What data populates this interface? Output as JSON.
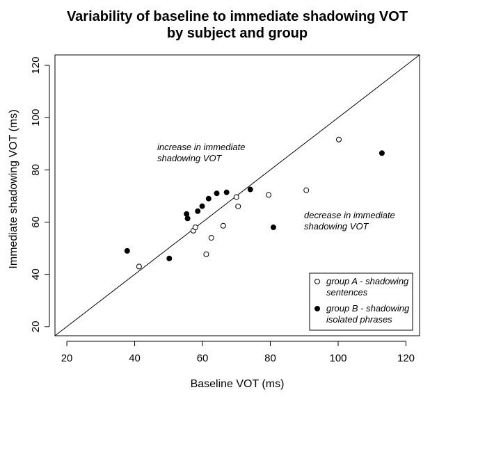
{
  "chart_data": {
    "type": "scatter",
    "title": [
      "Variability of baseline to immediate shadowing VOT",
      "by subject and group"
    ],
    "xlabel": "Baseline VOT (ms)",
    "ylabel": "Immediate shadowing VOT (ms)",
    "xlim": [
      16.5,
      124
    ],
    "ylim": [
      16.5,
      124
    ],
    "xticks": [
      20,
      40,
      60,
      80,
      100,
      120
    ],
    "yticks": [
      20,
      40,
      60,
      80,
      100,
      120
    ],
    "grid": false,
    "reference_line": "y = x",
    "annotations": {
      "increase": [
        "increase in immediate",
        "shadowing VOT"
      ],
      "decrease": [
        "decrease in immediate",
        "shadowing VOT"
      ]
    },
    "legend_position": "bottom-right",
    "series": [
      {
        "name": [
          "group A - shadowing",
          "sentences"
        ],
        "marker": "open-circle",
        "points": [
          [
            41.3,
            43.0
          ],
          [
            57.3,
            56.7
          ],
          [
            57.9,
            58.0
          ],
          [
            61.1,
            47.7
          ],
          [
            62.6,
            54.0
          ],
          [
            66.1,
            58.6
          ],
          [
            70.0,
            69.6
          ],
          [
            70.5,
            66.0
          ],
          [
            79.5,
            70.4
          ],
          [
            90.6,
            72.2
          ],
          [
            100.2,
            91.6
          ]
        ]
      },
      {
        "name": [
          "group B - shadowing",
          "isolated phrases"
        ],
        "marker": "filled-circle",
        "points": [
          [
            37.8,
            49.0
          ],
          [
            50.2,
            46.1
          ],
          [
            55.3,
            63.1
          ],
          [
            55.6,
            61.4
          ],
          [
            58.6,
            64.2
          ],
          [
            59.9,
            66.1
          ],
          [
            61.8,
            69.0
          ],
          [
            64.2,
            71.0
          ],
          [
            67.1,
            71.4
          ],
          [
            74.1,
            72.5
          ],
          [
            80.9,
            58.0
          ],
          [
            112.9,
            86.4
          ]
        ]
      }
    ]
  }
}
